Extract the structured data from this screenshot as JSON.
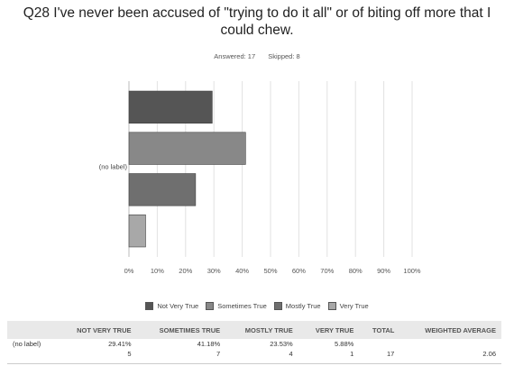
{
  "title": "Q28 I've never been accused of \"trying to do it all\" or of biting off more that I could chew.",
  "answered_label": "Answered: 17",
  "skipped_label": "Skipped: 8",
  "chart_data": {
    "type": "bar",
    "orientation": "horizontal",
    "categories": [
      "(no label)"
    ],
    "series": [
      {
        "name": "Not Very True",
        "values": [
          29.41
        ],
        "color": "#555555"
      },
      {
        "name": "Sometimes True",
        "values": [
          41.18
        ],
        "color": "#888888"
      },
      {
        "name": "Mostly True",
        "values": [
          23.53
        ],
        "color": "#6f6f6f"
      },
      {
        "name": "Very True",
        "values": [
          5.88
        ],
        "color": "#a8a8a8"
      }
    ],
    "xlim": [
      0,
      100
    ],
    "xticks": [
      "0%",
      "10%",
      "20%",
      "30%",
      "40%",
      "50%",
      "60%",
      "70%",
      "80%",
      "90%",
      "100%"
    ],
    "grid": true,
    "legend_position": "bottom"
  },
  "table": {
    "headers": [
      "",
      "NOT VERY TRUE",
      "SOMETIMES TRUE",
      "MOSTLY TRUE",
      "VERY TRUE",
      "TOTAL",
      "WEIGHTED AVERAGE"
    ],
    "row_label": "(no label)",
    "percents": [
      "29.41%",
      "41.18%",
      "23.53%",
      "5.88%",
      "",
      ""
    ],
    "counts": [
      "5",
      "7",
      "4",
      "1",
      "17",
      "2.06"
    ]
  }
}
